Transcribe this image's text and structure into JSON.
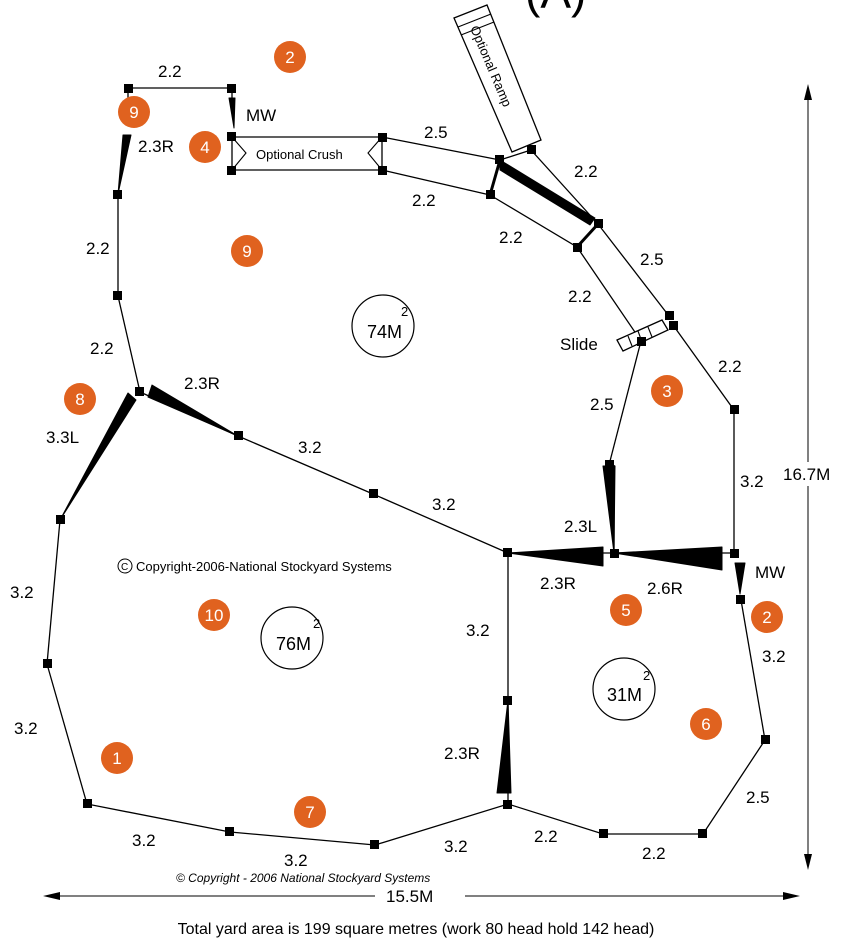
{
  "title_fragment": "(A)",
  "fence_labels": {
    "top_left": "2.2",
    "mw_top": "MW",
    "left_2_3r": "2.3R",
    "crush": "Optional Crush",
    "ramp": "Optional Ramp",
    "top_2_5": "2.5",
    "top_2_2_a": "2.2",
    "mid_2_2_a": "2.2",
    "ramp_2_2": "2.2",
    "ramp_2_5": "2.5",
    "ramp_2_2_b": "2.2",
    "slide": "Slide",
    "right_2_2": "2.2",
    "left_2_2_a": "2.2",
    "left_2_2_b": "2.2",
    "gate_2_3r_top": "2.3R",
    "left_3_3l": "3.3L",
    "diag_3_2_a": "3.2",
    "diag_3_2_b": "3.2",
    "slide_2_5": "2.5",
    "right_3_2": "3.2",
    "gate_2_3l": "2.3L",
    "gate_2_3r_mid": "2.3R",
    "gate_2_6r": "2.6R",
    "mw_right": "MW",
    "right_3_2_b": "3.2",
    "left_3_2_a": "3.2",
    "left_3_2_b": "3.2",
    "mid_3_2": "3.2",
    "gate_2_3r_bottom": "2.3R",
    "right_2_5": "2.5",
    "bottom_3_2_a": "3.2",
    "bottom_3_2_b": "3.2",
    "bottom_3_2_c": "3.2",
    "bottom_2_2_a": "2.2",
    "bottom_2_2_b": "2.2"
  },
  "markers": {
    "m2_top": "2",
    "m9_top": "9",
    "m4": "4",
    "m9_mid": "9",
    "m8": "8",
    "m3": "3",
    "m5": "5",
    "m2_right": "2",
    "m10": "10",
    "m6": "6",
    "m1": "1",
    "m7": "7"
  },
  "areas": {
    "top": {
      "value": "74M",
      "sup": "2"
    },
    "left": {
      "value": "76M",
      "sup": "2"
    },
    "right": {
      "value": "31M",
      "sup": "2"
    }
  },
  "copyright_symbol": "C",
  "copyright_main": "Copyright-2006-National Stockyard Systems",
  "copyright_footer": "© Copyright - 2006 National Stockyard Systems",
  "dimension_height": "16.7M",
  "dimension_width": "15.5M",
  "footer_text": "Total yard area is 199 square metres (work 80 head hold 142 head)",
  "colors": {
    "marker": "#e0621f"
  }
}
